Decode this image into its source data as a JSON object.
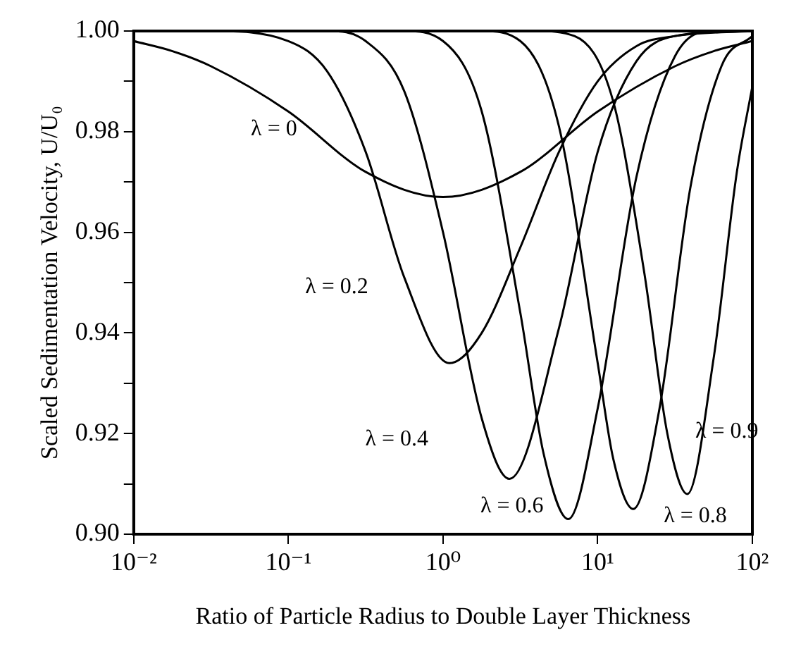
{
  "chart_data": {
    "type": "line",
    "xlabel": "Ratio of Particle Radius to Double Layer Thickness",
    "ylabel": "Scaled Sedimentation Velocity, U/U₀",
    "log": "x",
    "grid": false,
    "legend": false,
    "marker": "none",
    "line_style": "solid",
    "xlim": [
      0.01,
      100
    ],
    "ylim": [
      0.9,
      1.0
    ],
    "xticks": [
      {
        "value": 0.01,
        "label": "10⁻²"
      },
      {
        "value": 0.1,
        "label": "10⁻¹"
      },
      {
        "value": 1,
        "label": "10⁰"
      },
      {
        "value": 10,
        "label": "10¹"
      },
      {
        "value": 100,
        "label": "10²"
      }
    ],
    "yticks": [
      {
        "value": 0.9,
        "label": "0.90"
      },
      {
        "value": 0.91,
        "label": null
      },
      {
        "value": 0.92,
        "label": "0.92"
      },
      {
        "value": 0.93,
        "label": null
      },
      {
        "value": 0.94,
        "label": "0.94"
      },
      {
        "value": 0.95,
        "label": null
      },
      {
        "value": 0.96,
        "label": "0.96"
      },
      {
        "value": 0.97,
        "label": null
      },
      {
        "value": 0.98,
        "label": "0.98"
      },
      {
        "value": 0.99,
        "label": null
      },
      {
        "value": 1.0,
        "label": "1.00"
      }
    ],
    "series": [
      {
        "name": "λ = 0",
        "color": "#000000",
        "x": [
          0.01,
          0.0178,
          0.0316,
          0.1,
          0.316,
          1,
          3.16,
          10,
          31.6,
          56.2,
          100
        ],
        "values": [
          0.998,
          0.996,
          0.993,
          0.984,
          0.972,
          0.967,
          0.972,
          0.984,
          0.993,
          0.996,
          0.998
        ]
      },
      {
        "name": "λ = 0.2",
        "color": "#000000",
        "x": [
          0.01,
          0.0316,
          0.1,
          0.178,
          0.316,
          0.562,
          1.1,
          1.78,
          3.16,
          5.62,
          10,
          17.8,
          31.6,
          100
        ],
        "values": [
          1.0,
          1.0,
          0.998,
          0.992,
          0.976,
          0.951,
          0.934,
          0.94,
          0.957,
          0.976,
          0.99,
          0.997,
          0.999,
          1.0
        ]
      },
      {
        "name": "λ = 0.4",
        "color": "#000000",
        "x": [
          0.01,
          0.1,
          0.178,
          0.316,
          0.562,
          1,
          1.78,
          2.69,
          5.62,
          10,
          17.8,
          31.6,
          100
        ],
        "values": [
          1.0,
          1.0,
          1.0,
          0.998,
          0.988,
          0.96,
          0.923,
          0.911,
          0.941,
          0.976,
          0.994,
          0.999,
          1.0
        ]
      },
      {
        "name": "λ = 0.6",
        "color": "#000000",
        "x": [
          0.01,
          0.562,
          1,
          1.78,
          3.16,
          4.47,
          6.46,
          10,
          17.8,
          31.6,
          56.2,
          100
        ],
        "values": [
          1.0,
          1.0,
          0.998,
          0.984,
          0.944,
          0.916,
          0.903,
          0.925,
          0.971,
          0.995,
          1.0,
          1.0
        ]
      },
      {
        "name": "λ = 0.8",
        "color": "#000000",
        "x": [
          0.01,
          1.78,
          3.16,
          5.62,
          10,
          12.6,
          17,
          25.1,
          39.8,
          63.1,
          100
        ],
        "values": [
          1.0,
          1.0,
          0.998,
          0.981,
          0.934,
          0.915,
          0.905,
          0.925,
          0.969,
          0.993,
          0.999
        ]
      },
      {
        "name": "λ = 0.9",
        "color": "#000000",
        "x": [
          0.01,
          3.98,
          7.08,
          12.6,
          20,
          28.2,
          38,
          56.2,
          79.4,
          100
        ],
        "values": [
          1.0,
          1.0,
          0.999,
          0.986,
          0.952,
          0.92,
          0.908,
          0.935,
          0.972,
          0.989
        ]
      }
    ]
  }
}
